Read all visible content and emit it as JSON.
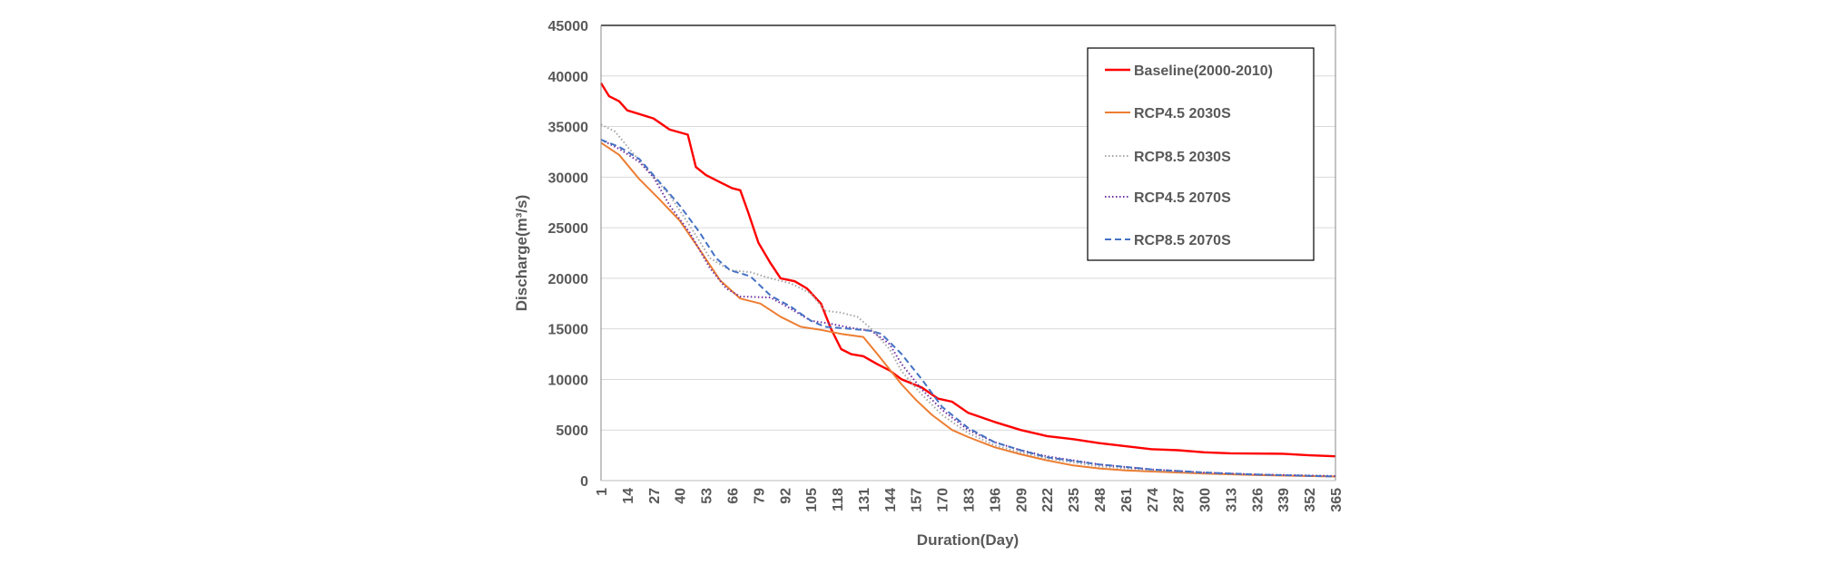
{
  "chart_data": {
    "type": "line",
    "title": "",
    "xlabel": "Duration(Day)",
    "ylabel": "Discharge(m³/s)",
    "xlim": [
      1,
      365
    ],
    "ylim": [
      0,
      45000
    ],
    "grid": true,
    "legend_position": "top-right",
    "y_ticks": [
      "0",
      "5000",
      "10000",
      "15000",
      "20000",
      "25000",
      "30000",
      "35000",
      "40000",
      "45000"
    ],
    "y_tick_values": [
      0,
      5000,
      10000,
      15000,
      20000,
      25000,
      30000,
      35000,
      40000,
      45000
    ],
    "x_ticks": [
      "1",
      "14",
      "27",
      "40",
      "53",
      "66",
      "79",
      "92",
      "105",
      "118",
      "131",
      "144",
      "157",
      "170",
      "183",
      "196",
      "209",
      "222",
      "235",
      "248",
      "261",
      "274",
      "287",
      "300",
      "313",
      "326",
      "339",
      "352",
      "365"
    ],
    "x_tick_values": [
      1,
      14,
      27,
      40,
      53,
      66,
      79,
      92,
      105,
      118,
      131,
      144,
      157,
      170,
      183,
      196,
      209,
      222,
      235,
      248,
      261,
      274,
      287,
      300,
      313,
      326,
      339,
      352,
      365
    ],
    "series": [
      {
        "name": "Baseline(2000-2010)",
        "color": "#ff0000",
        "style": "solid",
        "x": [
          1,
          5,
          10,
          14,
          27,
          35,
          44,
          48,
          53,
          60,
          66,
          70,
          74,
          79,
          85,
          90,
          97,
          103,
          110,
          115,
          120,
          125,
          131,
          138,
          144,
          150,
          160,
          168,
          175,
          183,
          196,
          209,
          222,
          235,
          248,
          261,
          274,
          287,
          300,
          313,
          339,
          352,
          365
        ],
        "y": [
          39300,
          38000,
          37500,
          36600,
          35800,
          34700,
          34200,
          31000,
          30200,
          29500,
          28900,
          28700,
          26500,
          23500,
          21500,
          20000,
          19700,
          19000,
          17500,
          15000,
          13000,
          12500,
          12300,
          11500,
          10900,
          10000,
          9200,
          8100,
          7800,
          6700,
          5800,
          5000,
          4400,
          4100,
          3700,
          3400,
          3100,
          3000,
          2800,
          2700,
          2650,
          2500,
          2400
        ]
      },
      {
        "name": "RCP4.5 2030S",
        "color": "#ed7d31",
        "style": "solid",
        "x": [
          1,
          10,
          20,
          30,
          40,
          50,
          60,
          70,
          80,
          90,
          100,
          110,
          120,
          131,
          138,
          144,
          150,
          157,
          165,
          175,
          183,
          196,
          209,
          222,
          235,
          248,
          261,
          274,
          300,
          326,
          365
        ],
        "y": [
          33400,
          32200,
          29800,
          27800,
          25700,
          22800,
          19800,
          18000,
          17500,
          16200,
          15200,
          14900,
          14500,
          14200,
          12500,
          11000,
          9500,
          8000,
          6500,
          5000,
          4300,
          3300,
          2600,
          2000,
          1500,
          1200,
          1000,
          900,
          700,
          550,
          400
        ]
      },
      {
        "name": "RCP8.5 2030S",
        "color": "#a5a5a5",
        "style": "dotted",
        "x": [
          1,
          8,
          15,
          25,
          35,
          45,
          55,
          65,
          75,
          85,
          95,
          105,
          112,
          120,
          128,
          135,
          144,
          150,
          160,
          170,
          183,
          196,
          209,
          222,
          248,
          274,
          300,
          326,
          365
        ],
        "y": [
          35200,
          34500,
          32800,
          30500,
          28200,
          25200,
          22000,
          20800,
          20600,
          20000,
          19500,
          18500,
          16800,
          16600,
          16200,
          15000,
          13000,
          10800,
          8500,
          6500,
          4700,
          3500,
          2800,
          2200,
          1400,
          1000,
          750,
          600,
          450
        ]
      },
      {
        "name": "RCP4.5 2070S",
        "color": "#7030a0",
        "style": "dotted",
        "x": [
          1,
          10,
          20,
          27,
          35,
          45,
          55,
          63,
          70,
          85,
          95,
          105,
          115,
          125,
          135,
          144,
          150,
          160,
          170,
          183,
          196,
          209,
          222,
          248,
          274,
          300,
          326,
          365
        ],
        "y": [
          33700,
          32800,
          31500,
          30000,
          27200,
          24500,
          21000,
          19000,
          18200,
          18100,
          17000,
          15800,
          15500,
          15100,
          14800,
          13500,
          11500,
          9000,
          7000,
          5000,
          3800,
          3000,
          2400,
          1600,
          1100,
          800,
          600,
          450
        ]
      },
      {
        "name": "RCP8.5 2070S",
        "color": "#4472c4",
        "style": "dashed",
        "x": [
          1,
          10,
          20,
          30,
          40,
          50,
          58,
          65,
          75,
          85,
          95,
          105,
          112,
          125,
          135,
          140,
          150,
          160,
          170,
          183,
          196,
          209,
          222,
          248,
          274,
          300,
          326,
          365
        ],
        "y": [
          33700,
          33000,
          31800,
          29500,
          27200,
          24500,
          22000,
          20800,
          20200,
          18300,
          17200,
          15800,
          15200,
          15000,
          14800,
          14500,
          12500,
          10000,
          7300,
          5200,
          3800,
          3000,
          2300,
          1600,
          1100,
          800,
          600,
          400
        ]
      }
    ]
  }
}
